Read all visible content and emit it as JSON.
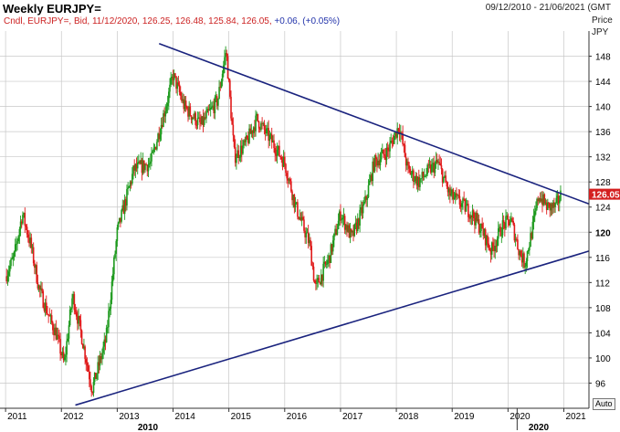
{
  "header": {
    "title": "Weekly EURJPY=",
    "date_range": "09/12/2010 - 21/06/2021 (GMT",
    "legend_main": "Cndl, EURJPY=, Bid, 11/12/2020, 126.25, 126.48, 125.84, 126.05,",
    "legend_change": "+0.06, (+0.05%)"
  },
  "axis": {
    "price_label": "Price",
    "currency_label": "JPY",
    "auto_button": "Auto"
  },
  "chart_data": {
    "type": "candlestick",
    "title": "Weekly EURJPY=",
    "ylabel": "Price JPY",
    "ylim": [
      92,
      152
    ],
    "y_ticks": [
      96,
      100,
      104,
      108,
      112,
      116,
      120,
      124,
      128,
      132,
      136,
      140,
      144,
      148
    ],
    "y_tick_bold": 120,
    "x_ticks": [
      "2011",
      "2012",
      "2013",
      "2014",
      "2015",
      "2016",
      "2017",
      "2018",
      "2019",
      "2020",
      "2021"
    ],
    "x_major_labels": [
      "2010",
      "2020"
    ],
    "last_price": "126.05",
    "last_candle": {
      "date": "11/12/2020",
      "open": 126.25,
      "high": 126.48,
      "low": 125.84,
      "close": 126.05
    },
    "price_path": [
      {
        "t": 2011.0,
        "v": 113
      },
      {
        "t": 2011.15,
        "v": 116
      },
      {
        "t": 2011.3,
        "v": 123
      },
      {
        "t": 2011.45,
        "v": 118
      },
      {
        "t": 2011.6,
        "v": 111
      },
      {
        "t": 2011.8,
        "v": 106
      },
      {
        "t": 2011.9,
        "v": 104
      },
      {
        "t": 2012.05,
        "v": 99
      },
      {
        "t": 2012.2,
        "v": 110
      },
      {
        "t": 2012.35,
        "v": 104
      },
      {
        "t": 2012.55,
        "v": 95
      },
      {
        "t": 2012.8,
        "v": 103
      },
      {
        "t": 2013.0,
        "v": 120
      },
      {
        "t": 2013.3,
        "v": 130
      },
      {
        "t": 2013.6,
        "v": 131
      },
      {
        "t": 2013.9,
        "v": 141
      },
      {
        "t": 2014.0,
        "v": 145
      },
      {
        "t": 2014.2,
        "v": 140
      },
      {
        "t": 2014.5,
        "v": 137
      },
      {
        "t": 2014.8,
        "v": 141
      },
      {
        "t": 2014.95,
        "v": 149
      },
      {
        "t": 2015.1,
        "v": 132
      },
      {
        "t": 2015.3,
        "v": 134
      },
      {
        "t": 2015.5,
        "v": 138
      },
      {
        "t": 2015.8,
        "v": 134
      },
      {
        "t": 2016.0,
        "v": 131
      },
      {
        "t": 2016.2,
        "v": 124
      },
      {
        "t": 2016.45,
        "v": 118
      },
      {
        "t": 2016.55,
        "v": 111
      },
      {
        "t": 2016.8,
        "v": 116
      },
      {
        "t": 2017.0,
        "v": 123
      },
      {
        "t": 2017.2,
        "v": 119
      },
      {
        "t": 2017.45,
        "v": 125
      },
      {
        "t": 2017.6,
        "v": 131
      },
      {
        "t": 2017.85,
        "v": 133
      },
      {
        "t": 2018.05,
        "v": 137
      },
      {
        "t": 2018.2,
        "v": 130
      },
      {
        "t": 2018.4,
        "v": 128
      },
      {
        "t": 2018.6,
        "v": 130
      },
      {
        "t": 2018.75,
        "v": 131
      },
      {
        "t": 2018.95,
        "v": 126
      },
      {
        "t": 2019.1,
        "v": 125
      },
      {
        "t": 2019.35,
        "v": 123
      },
      {
        "t": 2019.55,
        "v": 120
      },
      {
        "t": 2019.7,
        "v": 117
      },
      {
        "t": 2019.9,
        "v": 121
      },
      {
        "t": 2020.05,
        "v": 122
      },
      {
        "t": 2020.2,
        "v": 117
      },
      {
        "t": 2020.3,
        "v": 115
      },
      {
        "t": 2020.45,
        "v": 121
      },
      {
        "t": 2020.55,
        "v": 126
      },
      {
        "t": 2020.7,
        "v": 124
      },
      {
        "t": 2020.85,
        "v": 124
      },
      {
        "t": 2020.95,
        "v": 126
      }
    ],
    "trendlines": [
      {
        "name": "upper",
        "points": [
          {
            "t": 2013.75,
            "v": 150
          },
          {
            "t": 2021.45,
            "v": 124.5
          }
        ]
      },
      {
        "name": "lower",
        "points": [
          {
            "t": 2012.25,
            "v": 92.5
          },
          {
            "t": 2021.45,
            "v": 117
          }
        ]
      }
    ],
    "grid": true,
    "colors": {
      "up": "#1e9a1e",
      "down": "#e01b1b",
      "trendline": "#1a237e",
      "last_label_bg": "#d42020",
      "grid": "#c8c8c8"
    }
  }
}
